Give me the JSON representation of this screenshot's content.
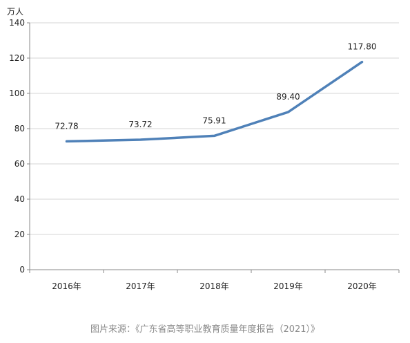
{
  "chart_data": {
    "type": "line",
    "categories": [
      "2016年",
      "2017年",
      "2018年",
      "2019年",
      "2020年"
    ],
    "values": [
      72.78,
      73.72,
      75.91,
      89.4,
      117.8
    ],
    "value_labels": [
      "72.78",
      "73.72",
      "75.91",
      "89.40",
      "117.80"
    ],
    "ylabel": "万人",
    "ylim": [
      0,
      140
    ],
    "yticks": [
      "0",
      "20",
      "40",
      "60",
      "80",
      "100",
      "120",
      "140"
    ],
    "grid": true,
    "legend": "none",
    "line_color": "#4f81b8"
  },
  "caption": "图片来源：《广东省高等职业教育质量年度报告（2021）》"
}
